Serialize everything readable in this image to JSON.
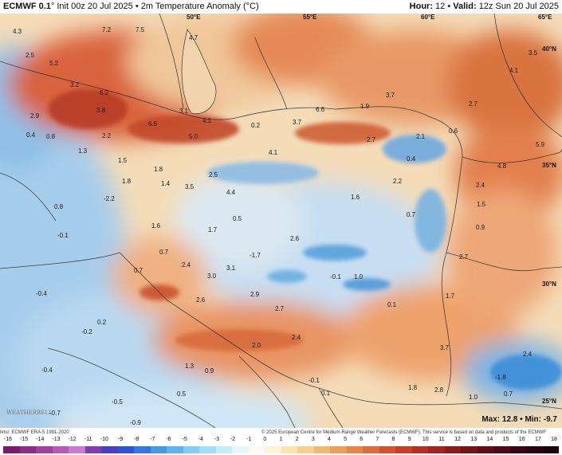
{
  "header": {
    "model": "ECMWF 0.1",
    "init": "° Init 00z 20 Jul 2025",
    "sep": "•",
    "product": "2m Temperature Anomaly (°C)",
    "hour_label": "Hour:",
    "hour": "12",
    "valid_label": "Valid:",
    "valid": "12z Sun 20 Jul 2025"
  },
  "coords": [
    "50°E",
    "55°E",
    "60°E",
    "65°E",
    "40°N",
    "35°N",
    "30°N",
    "25°N"
  ],
  "values": [
    "4.3",
    "7.2",
    "7.5",
    "4.7",
    "2.5",
    "3.2",
    "5.2",
    "6.2",
    "3.8",
    "2.9",
    "0.4",
    "0.8",
    "1.3",
    "2.2",
    "6.6",
    "4.1",
    "3.1",
    "5.0",
    "0.2",
    "3.7",
    "6.6",
    "1.9",
    "3.7",
    "2.1",
    "0.6",
    "2.7",
    "4.1",
    "3.5",
    "2.7",
    "4.1",
    "5.9",
    "4.8",
    "1.5",
    "1.8",
    "1.8",
    "1.4",
    "3.5",
    "2.5",
    "4.4",
    "0.4",
    "2.2",
    "2.4",
    "1.5",
    "1.6",
    "-2.2",
    "0.8",
    "-0.1",
    "1.6",
    "0.5",
    "1.7",
    "2.6",
    "0.7",
    "0.9",
    "0.7",
    "0.7",
    "2.4",
    "-1.7",
    "-0.1",
    "1.0",
    "2.7",
    "3.0",
    "3.1",
    "2.6",
    "2.9",
    "0.1",
    "1.7",
    "-0.4",
    "0.2",
    "2.7",
    "-0.2",
    "2.0",
    "2.4",
    "3.7",
    "2.4",
    "-0.4",
    "1.3",
    "0.9",
    "-1.8",
    "0.5",
    "-0.1",
    "2.8",
    "1.0",
    "0.7",
    "1.8",
    "-0.5",
    "-0.7",
    "-0.9",
    "0.1"
  ],
  "stats": {
    "max_label": "Max:",
    "max": "12.8",
    "sep": "•",
    "min_label": "Min:",
    "min": "-9.7"
  },
  "credits": {
    "left": "limo: ECMWF ERA-5 1991-2020",
    "right": "© 2025 European Centre for Medium-Range Weather Forecasts (ECMWF). This service is based on data and products of the ECMWF",
    "logo": "WEATHERBELL"
  },
  "scale": {
    "ticks": [
      "-16",
      "-15",
      "-14",
      "-13",
      "-12",
      "-11",
      "-10",
      "-9",
      "-8",
      "-7",
      "-6",
      "-5",
      "-4",
      "-3",
      "-2",
      "-1",
      "0",
      "1",
      "2",
      "3",
      "4",
      "5",
      "6",
      "7",
      "8",
      "9",
      "10",
      "11",
      "12",
      "13",
      "14",
      "15",
      "16",
      "17",
      "18"
    ],
    "colors": [
      "#7a1b6e",
      "#8e2a86",
      "#a23fa0",
      "#b65ab8",
      "#c87bcc",
      "#7b3fb0",
      "#4a3fbf",
      "#2b55d1",
      "#2f79e0",
      "#3f9be8",
      "#5bb6ee",
      "#7fcdf2",
      "#a3dff6",
      "#c5ecf9",
      "#e4f6fc",
      "#fbfbf3",
      "#fdf3d6",
      "#fbe3b1",
      "#f7cf8d",
      "#f3b86f",
      "#ee9d58",
      "#e78447",
      "#df6b3a",
      "#d4532f",
      "#c63f27",
      "#b52e22",
      "#a1221e",
      "#8c181b",
      "#761019",
      "#610b18",
      "#4c0815",
      "#380612",
      "#27040e",
      "#1a0309"
    ]
  }
}
